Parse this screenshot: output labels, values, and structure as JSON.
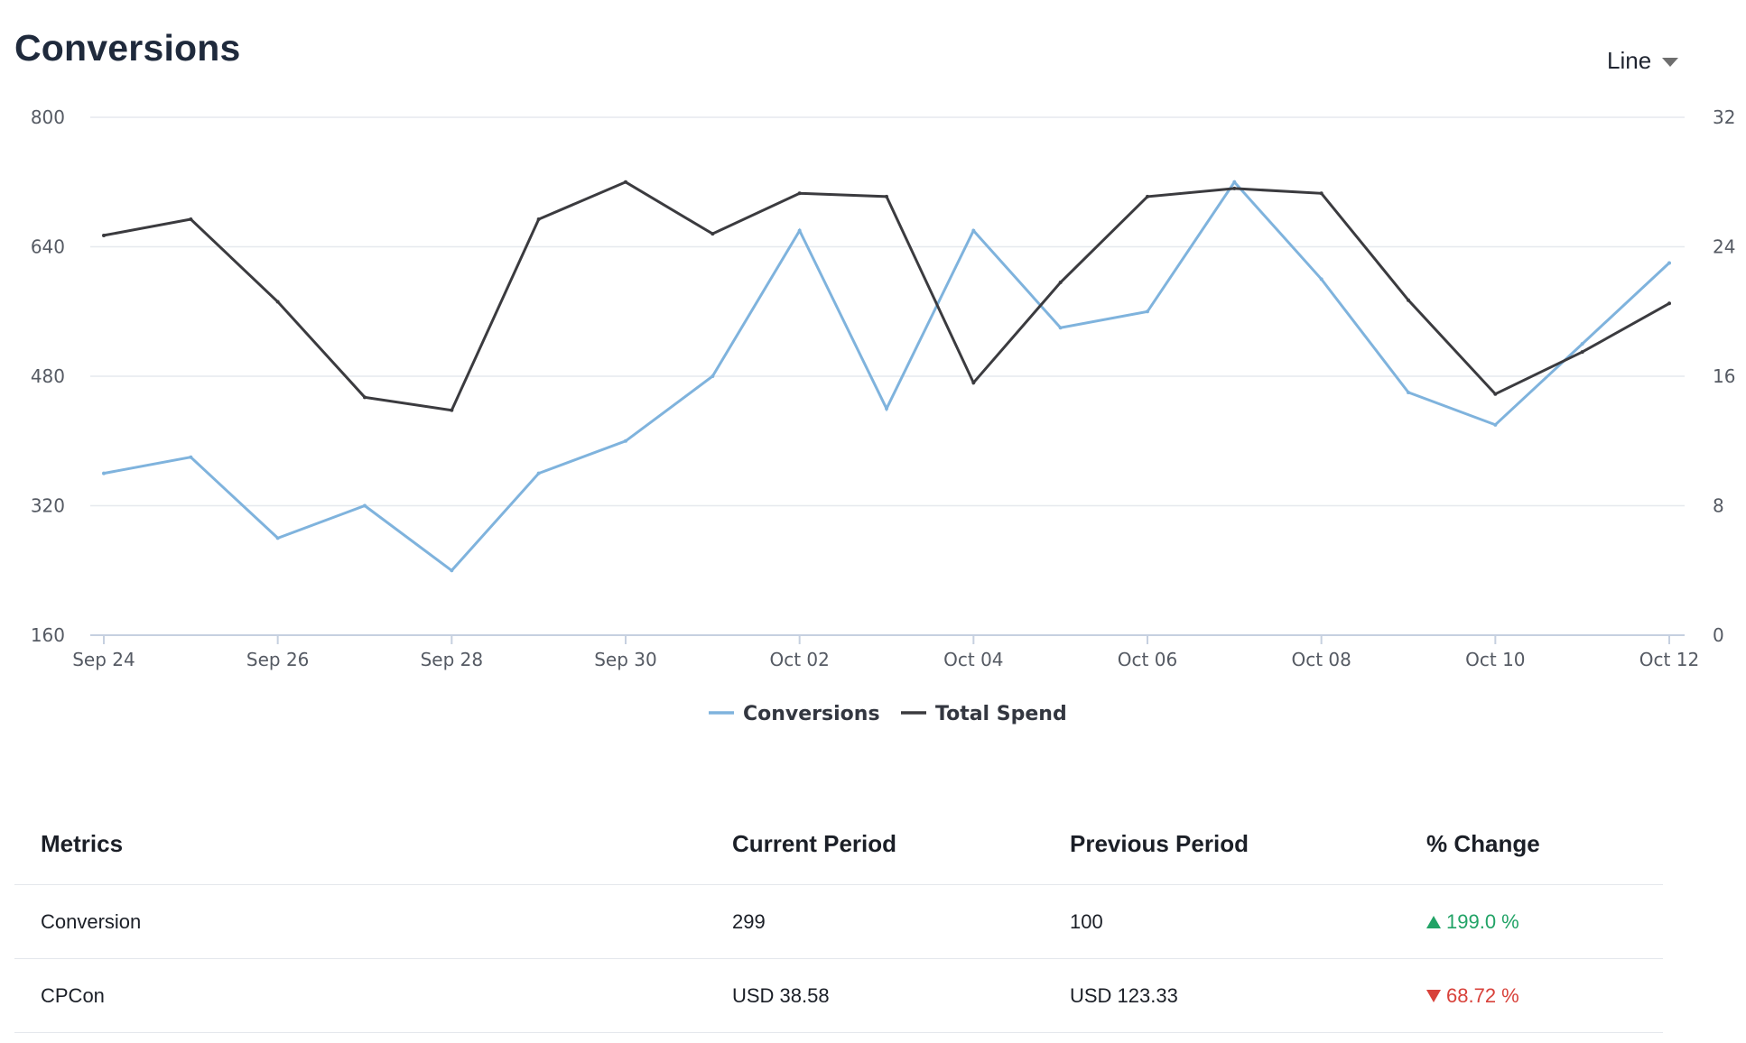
{
  "header": {
    "title": "Conversions",
    "chart_type_label": "Line"
  },
  "chart_data": {
    "type": "line",
    "title": "Conversions",
    "xlabel": "",
    "ylabel": "",
    "x": [
      "Sep 24",
      "Sep 25",
      "Sep 26",
      "Sep 27",
      "Sep 28",
      "Sep 29",
      "Sep 30",
      "Oct 01",
      "Oct 02",
      "Oct 03",
      "Oct 04",
      "Oct 05",
      "Oct 06",
      "Oct 07",
      "Oct 08",
      "Oct 09",
      "Oct 10",
      "Oct 11",
      "Oct 12"
    ],
    "x_tick_labels": [
      "Sep 24",
      "Sep 26",
      "Sep 28",
      "Sep 30",
      "Oct 02",
      "Oct 04",
      "Oct 06",
      "Oct 08",
      "Oct 10",
      "Oct 12"
    ],
    "y_left": {
      "ylim": [
        160,
        800
      ],
      "ticks": [
        "800",
        "640",
        "480",
        "320",
        "160"
      ]
    },
    "y_right": {
      "ylim": [
        0,
        32
      ],
      "ticks": [
        "32",
        "24",
        "16",
        "8",
        "0"
      ]
    },
    "series": [
      {
        "name": "Conversions",
        "axis": "left",
        "color": "#7fb3dd",
        "values": [
          360,
          380,
          280,
          320,
          240,
          360,
          400,
          480,
          660,
          440,
          660,
          540,
          560,
          720,
          600,
          460,
          420,
          520,
          620
        ]
      },
      {
        "name": "Total Spend",
        "axis": "right",
        "color": "#3b3b3f",
        "values": [
          24.7,
          25.7,
          20.6,
          14.7,
          13.9,
          25.7,
          28.0,
          24.8,
          27.3,
          27.1,
          15.6,
          21.8,
          27.1,
          27.6,
          27.3,
          20.7,
          14.9,
          17.5,
          20.5
        ]
      }
    ],
    "legend": {
      "placement": "bottom-center",
      "entries": [
        "Conversions",
        "Total Spend"
      ]
    },
    "grid": true,
    "gridline_color": "#e6e9ee",
    "axis_color": "#c6d0e0",
    "tick_label_color": "#555a63"
  },
  "table": {
    "headers": [
      "Metrics",
      "Current Period",
      "Previous Period",
      "% Change"
    ],
    "rows": [
      {
        "metric": "Conversion",
        "current": "299",
        "previous": "100",
        "change": "199.0 %",
        "direction": "up"
      },
      {
        "metric": "CPCon",
        "current": "USD 38.58",
        "previous": "USD 123.33",
        "change": "68.72 %",
        "direction": "down"
      }
    ]
  },
  "colors": {
    "positive": "#21a366",
    "negative": "#d8413a"
  }
}
